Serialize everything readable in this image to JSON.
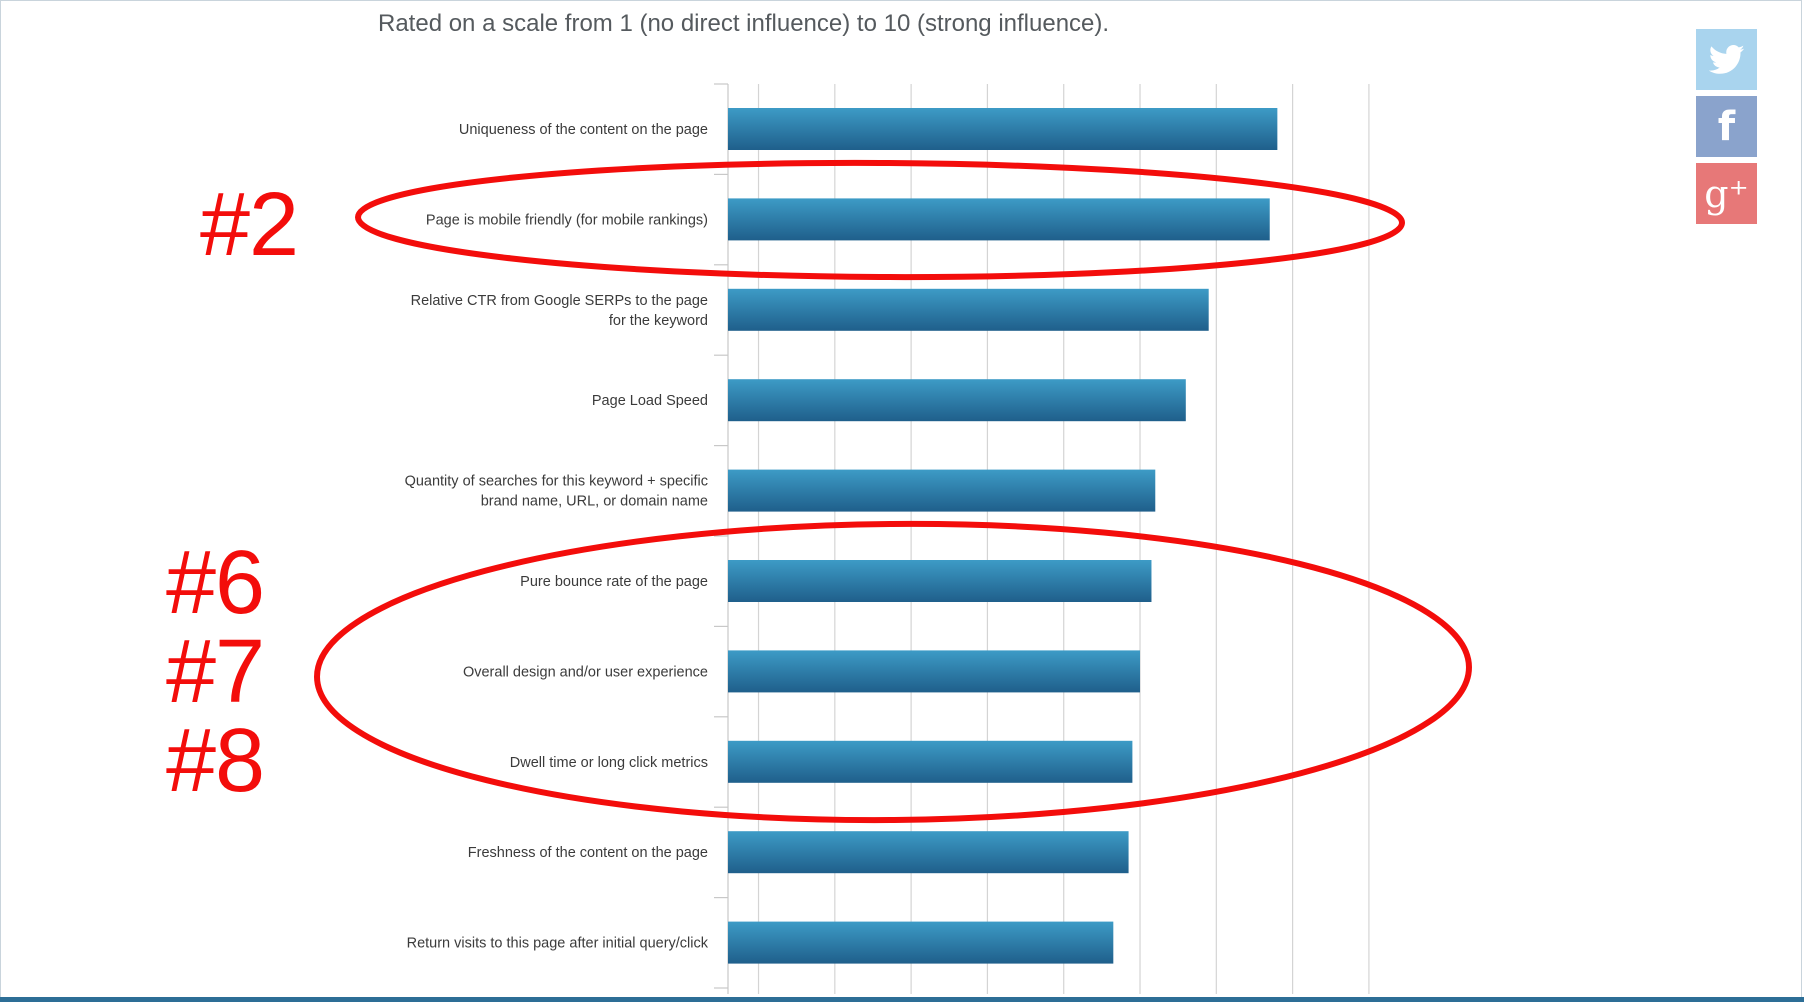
{
  "header": {
    "subtitle": "Rated on a scale from 1 (no direct influence) to 10 (strong influence)."
  },
  "chart_data": {
    "type": "bar",
    "orientation": "horizontal",
    "categories": [
      [
        "Uniqueness of the content on the page"
      ],
      [
        "Page is mobile friendly (for mobile rankings)"
      ],
      [
        "Relative CTR from Google SERPs to the page",
        "for the keyword"
      ],
      [
        "Page Load Speed"
      ],
      [
        "Quantity of searches for this keyword + specific",
        "brand name, URL, or domain name"
      ],
      [
        "Pure bounce rate of the page"
      ],
      [
        "Overall design and/or user experience"
      ],
      [
        "Dwell time or long click metrics"
      ],
      [
        "Freshness of the content on the page"
      ],
      [
        "Return visits to this page after initial query/click"
      ]
    ],
    "values": [
      8.8,
      8.7,
      7.9,
      7.6,
      7.2,
      7.15,
      7.0,
      6.9,
      6.85,
      6.65
    ],
    "xlim": [
      1,
      10
    ],
    "grid": true,
    "bar_color_top": "#3d9bc6",
    "bar_color_bottom": "#1f5f8b",
    "gridline_color": "#d4d4d4"
  },
  "annotations": {
    "color": "#f30d0b",
    "labels": [
      "#2",
      "#6",
      "#7",
      "#8"
    ]
  },
  "social": {
    "twitter": {
      "icon": "twitter-bird-icon",
      "color": "#a9d4ee"
    },
    "facebook": {
      "icon": "facebook-f-icon",
      "glyph": "f",
      "color": "#8aa3cc"
    },
    "googleplus": {
      "icon": "google-plus-icon",
      "glyph": "g⁺",
      "color": "#e77878"
    }
  }
}
